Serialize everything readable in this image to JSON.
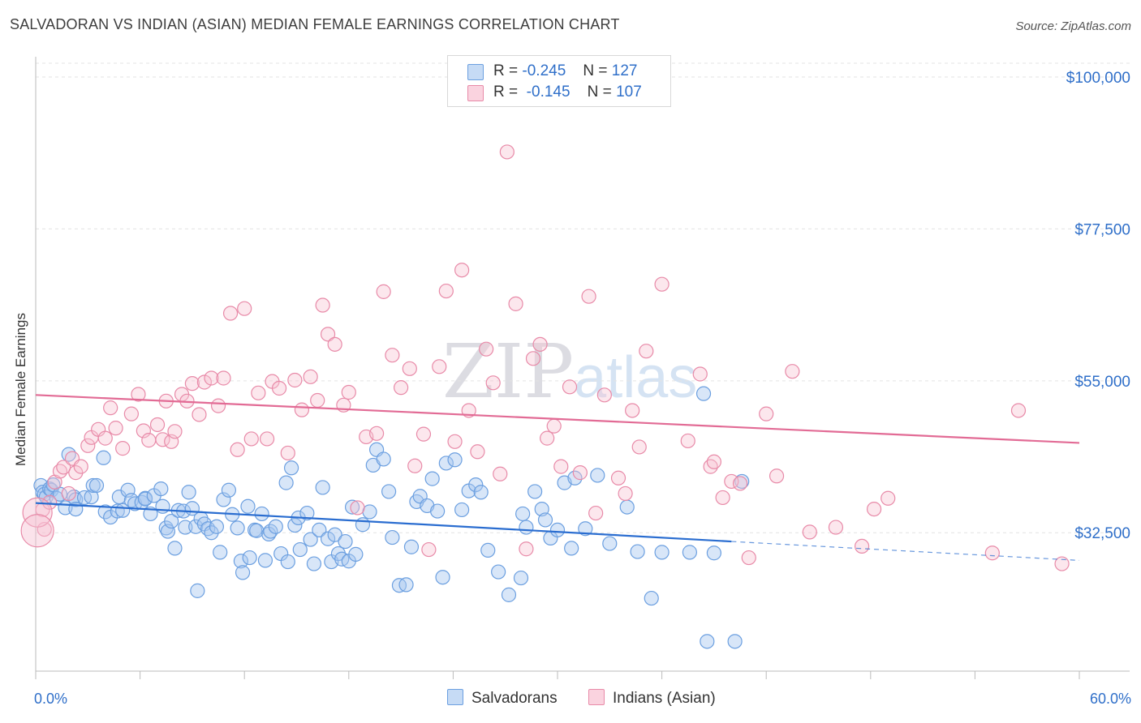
{
  "title": "SALVADORAN VS INDIAN (ASIAN) MEDIAN FEMALE EARNINGS CORRELATION CHART",
  "source": "Source: ZipAtlas.com",
  "watermark": {
    "zip": "ZIP",
    "atlas": "atlas"
  },
  "legend": [
    {
      "r_label": "R =",
      "r_value": "-0.245",
      "n_label": "N =",
      "n_value": "127",
      "color": "#a8c8f0",
      "border": "#6b9fe0"
    },
    {
      "r_label": "R =",
      "r_value": "-0.145",
      "n_label": "N =",
      "n_value": "107",
      "color": "#f7c2d2",
      "border": "#e88aa8"
    }
  ],
  "bottom_legend": [
    "Salvadorans",
    "Indians (Asian)"
  ],
  "colors": {
    "blue": "#2a6dd0",
    "blue_fill": "#a8c8f0",
    "pink": "#e26b95",
    "pink_fill": "#f7c2d2",
    "tick_label": "#2f6fc9",
    "grid": "#e3e3e3"
  },
  "chart_data": {
    "type": "scatter",
    "title": "SALVADORAN VS INDIAN (ASIAN) MEDIAN FEMALE EARNINGS CORRELATION CHART",
    "xlabel": "",
    "ylabel": "Median Female Earnings",
    "xlim": [
      0,
      60
    ],
    "ylim": [
      12000,
      103000
    ],
    "x_tick_labels": [
      "0.0%",
      "60.0%"
    ],
    "y_ticks": [
      32500,
      55000,
      77500,
      100000
    ],
    "y_tick_labels": [
      "$32,500",
      "$55,000",
      "$77,500",
      "$100,000"
    ],
    "grid": true,
    "series": [
      {
        "name": "Salvadorans",
        "trend": {
          "x0": 0,
          "y0": 36900,
          "x1": 40,
          "y1": 31200,
          "dashed_to_x": 60,
          "dashed_to_y": 28400
        },
        "points": [
          [
            0.3,
            39500
          ],
          [
            0.4,
            38500
          ],
          [
            0.5,
            38200
          ],
          [
            0.6,
            37800
          ],
          [
            0.8,
            39000
          ],
          [
            0.9,
            38800
          ],
          [
            1.0,
            39600
          ],
          [
            1.2,
            37600
          ],
          [
            1.4,
            38200
          ],
          [
            1.7,
            36200
          ],
          [
            1.9,
            44100
          ],
          [
            2.2,
            37800
          ],
          [
            2.3,
            37400
          ],
          [
            2.3,
            36000
          ],
          [
            2.8,
            37700
          ],
          [
            3.2,
            37800
          ],
          [
            3.3,
            39500
          ],
          [
            3.5,
            39500
          ],
          [
            3.9,
            43600
          ],
          [
            4.0,
            35600
          ],
          [
            4.3,
            34800
          ],
          [
            4.7,
            35700
          ],
          [
            4.8,
            37800
          ],
          [
            5.0,
            35800
          ],
          [
            5.3,
            38800
          ],
          [
            5.5,
            37300
          ],
          [
            5.7,
            36800
          ],
          [
            6.1,
            37000
          ],
          [
            6.3,
            37600
          ],
          [
            6.3,
            37500
          ],
          [
            6.6,
            35300
          ],
          [
            6.8,
            38000
          ],
          [
            7.2,
            39000
          ],
          [
            7.3,
            36400
          ],
          [
            7.5,
            33200
          ],
          [
            7.6,
            32700
          ],
          [
            7.8,
            34200
          ],
          [
            8.0,
            30200
          ],
          [
            8.2,
            35800
          ],
          [
            8.5,
            35700
          ],
          [
            8.6,
            33300
          ],
          [
            8.8,
            38500
          ],
          [
            9.0,
            36100
          ],
          [
            9.2,
            33400
          ],
          [
            9.3,
            23900
          ],
          [
            9.5,
            34600
          ],
          [
            9.7,
            33800
          ],
          [
            9.9,
            33100
          ],
          [
            10.1,
            32500
          ],
          [
            10.4,
            33400
          ],
          [
            10.6,
            29600
          ],
          [
            10.8,
            37400
          ],
          [
            11.1,
            38800
          ],
          [
            11.3,
            35200
          ],
          [
            11.6,
            33200
          ],
          [
            11.8,
            28300
          ],
          [
            11.9,
            26600
          ],
          [
            12.2,
            36400
          ],
          [
            12.3,
            28800
          ],
          [
            12.6,
            32900
          ],
          [
            12.7,
            32800
          ],
          [
            13.0,
            35300
          ],
          [
            13.2,
            28400
          ],
          [
            13.4,
            32300
          ],
          [
            13.5,
            32700
          ],
          [
            13.8,
            33400
          ],
          [
            14.1,
            29400
          ],
          [
            14.4,
            39900
          ],
          [
            14.5,
            28200
          ],
          [
            14.7,
            42100
          ],
          [
            14.9,
            33600
          ],
          [
            15.1,
            34700
          ],
          [
            15.2,
            30000
          ],
          [
            15.6,
            35400
          ],
          [
            15.8,
            31500
          ],
          [
            16.0,
            27900
          ],
          [
            16.3,
            32900
          ],
          [
            16.5,
            39200
          ],
          [
            16.8,
            31600
          ],
          [
            17.0,
            28200
          ],
          [
            17.2,
            32200
          ],
          [
            17.4,
            29400
          ],
          [
            17.6,
            28600
          ],
          [
            17.8,
            31200
          ],
          [
            18.0,
            28300
          ],
          [
            18.2,
            36300
          ],
          [
            18.4,
            29300
          ],
          [
            18.8,
            33700
          ],
          [
            19.2,
            35600
          ],
          [
            19.4,
            42500
          ],
          [
            19.6,
            44800
          ],
          [
            20.0,
            43400
          ],
          [
            20.3,
            38600
          ],
          [
            20.5,
            31800
          ],
          [
            20.9,
            24700
          ],
          [
            21.3,
            24800
          ],
          [
            21.6,
            30400
          ],
          [
            21.9,
            37100
          ],
          [
            22.1,
            37900
          ],
          [
            22.5,
            36500
          ],
          [
            22.8,
            40500
          ],
          [
            23.1,
            35700
          ],
          [
            23.4,
            25900
          ],
          [
            23.6,
            42800
          ],
          [
            24.1,
            43300
          ],
          [
            24.5,
            35900
          ],
          [
            24.9,
            38700
          ],
          [
            25.3,
            39600
          ],
          [
            25.6,
            38500
          ],
          [
            26.0,
            29900
          ],
          [
            26.6,
            26700
          ],
          [
            27.2,
            23300
          ],
          [
            27.9,
            25800
          ],
          [
            28.0,
            35300
          ],
          [
            28.2,
            33300
          ],
          [
            28.7,
            38600
          ],
          [
            29.1,
            36000
          ],
          [
            29.3,
            34400
          ],
          [
            29.6,
            31700
          ],
          [
            30.0,
            32900
          ],
          [
            30.4,
            39900
          ],
          [
            30.8,
            30200
          ],
          [
            31.0,
            40600
          ],
          [
            31.6,
            33100
          ],
          [
            32.3,
            41000
          ],
          [
            33.0,
            30900
          ],
          [
            34.0,
            36300
          ],
          [
            34.6,
            29700
          ],
          [
            35.4,
            22800
          ],
          [
            36.0,
            29600
          ],
          [
            37.6,
            29600
          ],
          [
            38.4,
            53100
          ],
          [
            38.6,
            16400
          ],
          [
            39.0,
            29500
          ],
          [
            40.2,
            16400
          ],
          [
            40.6,
            40100
          ]
        ]
      },
      {
        "name": "Indians (Asian)",
        "trend": {
          "x0": 0,
          "y0": 52900,
          "x1": 60,
          "y1": 45800
        },
        "points": [
          [
            0.4,
            35900
          ],
          [
            0.5,
            33000
          ],
          [
            0.8,
            37000
          ],
          [
            1.1,
            40000
          ],
          [
            1.4,
            41600
          ],
          [
            1.6,
            42200
          ],
          [
            1.9,
            38300
          ],
          [
            2.1,
            43500
          ],
          [
            2.3,
            41400
          ],
          [
            2.6,
            42300
          ],
          [
            3.0,
            45400
          ],
          [
            3.2,
            46600
          ],
          [
            3.6,
            47800
          ],
          [
            4.0,
            46500
          ],
          [
            4.3,
            51000
          ],
          [
            4.6,
            48000
          ],
          [
            5.0,
            45000
          ],
          [
            5.5,
            50100
          ],
          [
            5.9,
            53000
          ],
          [
            6.2,
            47600
          ],
          [
            6.5,
            46200
          ],
          [
            7.0,
            48500
          ],
          [
            7.3,
            46300
          ],
          [
            7.5,
            52000
          ],
          [
            7.8,
            46000
          ],
          [
            8.0,
            47500
          ],
          [
            8.4,
            53000
          ],
          [
            8.7,
            52000
          ],
          [
            9.0,
            54600
          ],
          [
            9.4,
            50000
          ],
          [
            9.7,
            54800
          ],
          [
            10.1,
            55400
          ],
          [
            10.5,
            51300
          ],
          [
            10.8,
            55400
          ],
          [
            11.2,
            65000
          ],
          [
            11.6,
            44800
          ],
          [
            12.0,
            65700
          ],
          [
            12.4,
            46400
          ],
          [
            12.8,
            53200
          ],
          [
            13.3,
            46400
          ],
          [
            13.6,
            54900
          ],
          [
            14.0,
            53900
          ],
          [
            14.5,
            44300
          ],
          [
            14.9,
            55100
          ],
          [
            15.3,
            50700
          ],
          [
            15.8,
            55600
          ],
          [
            16.2,
            52100
          ],
          [
            16.5,
            66200
          ],
          [
            16.8,
            61900
          ],
          [
            17.2,
            60400
          ],
          [
            17.7,
            51400
          ],
          [
            18.0,
            53300
          ],
          [
            18.5,
            36200
          ],
          [
            19.0,
            46700
          ],
          [
            19.6,
            47200
          ],
          [
            20.0,
            68200
          ],
          [
            20.5,
            58800
          ],
          [
            21.0,
            54000
          ],
          [
            21.5,
            56800
          ],
          [
            21.8,
            42400
          ],
          [
            22.3,
            47100
          ],
          [
            22.6,
            30000
          ],
          [
            23.2,
            57100
          ],
          [
            23.6,
            68300
          ],
          [
            24.1,
            46000
          ],
          [
            24.5,
            71400
          ],
          [
            24.9,
            50600
          ],
          [
            25.4,
            44500
          ],
          [
            25.9,
            59700
          ],
          [
            26.3,
            54700
          ],
          [
            26.7,
            41200
          ],
          [
            27.1,
            88900
          ],
          [
            27.6,
            66400
          ],
          [
            28.2,
            30100
          ],
          [
            28.6,
            58300
          ],
          [
            29.0,
            60400
          ],
          [
            29.4,
            46500
          ],
          [
            29.8,
            48300
          ],
          [
            30.2,
            42300
          ],
          [
            30.7,
            54100
          ],
          [
            31.3,
            41400
          ],
          [
            31.8,
            67500
          ],
          [
            32.2,
            35400
          ],
          [
            32.7,
            52900
          ],
          [
            33.5,
            40600
          ],
          [
            33.9,
            38300
          ],
          [
            34.3,
            50600
          ],
          [
            34.7,
            45200
          ],
          [
            35.1,
            59400
          ],
          [
            36.0,
            69300
          ],
          [
            37.5,
            46100
          ],
          [
            38.2,
            56000
          ],
          [
            38.8,
            42300
          ],
          [
            39.0,
            43000
          ],
          [
            39.5,
            37700
          ],
          [
            40.0,
            40100
          ],
          [
            40.5,
            39800
          ],
          [
            41.0,
            28800
          ],
          [
            42.0,
            50100
          ],
          [
            42.6,
            40900
          ],
          [
            43.5,
            56400
          ],
          [
            44.5,
            32600
          ],
          [
            46.0,
            33300
          ],
          [
            47.5,
            30500
          ],
          [
            48.2,
            36000
          ],
          [
            49.0,
            37600
          ],
          [
            55.0,
            29500
          ],
          [
            56.5,
            50600
          ],
          [
            59.0,
            27900
          ]
        ]
      }
    ]
  }
}
